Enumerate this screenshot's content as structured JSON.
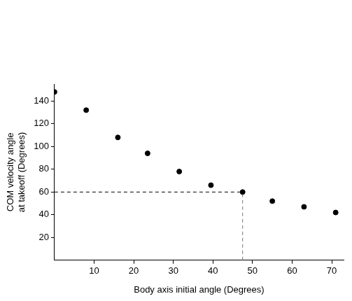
{
  "chart_data": {
    "type": "scatter",
    "x_label": "Body axis initial angle (Degrees)",
    "y_label": [
      "COM velocity angle",
      "at takeoff (Degrees)"
    ],
    "x": [
      0,
      8,
      16,
      23.5,
      31.5,
      39.5,
      47.5,
      55,
      63,
      71
    ],
    "values": [
      148,
      132,
      108,
      94,
      78,
      66,
      60,
      52,
      47,
      42
    ],
    "color": "#000000",
    "marker": "circle",
    "highlight": {
      "x": 47.5,
      "y": 60
    },
    "xlim": [
      0,
      73
    ],
    "xticks": [
      10,
      20,
      30,
      40,
      50,
      60,
      70
    ],
    "ylim": [
      0,
      155
    ],
    "yticks": [
      20,
      40,
      60,
      80,
      100,
      120,
      140
    ],
    "grid": false
  }
}
